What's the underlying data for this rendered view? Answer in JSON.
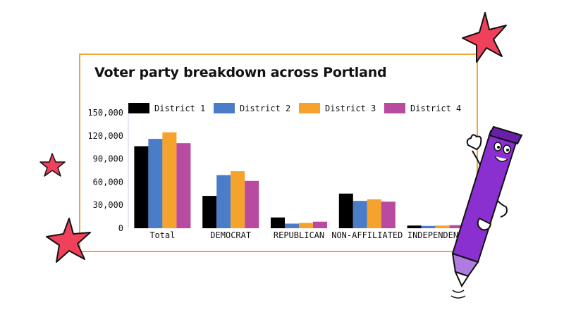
{
  "chart_data": {
    "type": "bar",
    "title": "Voter party breakdown across Portland",
    "xlabel": "",
    "ylabel": "",
    "categories": [
      "Total",
      "DEMOCRAT",
      "REPUBLICAN",
      "NON-AFFILIATED",
      "INDEPENDENT"
    ],
    "series": [
      {
        "name": "District 1",
        "color": "#000000",
        "values": [
          106500,
          42000,
          14000,
          45000,
          3500
        ]
      },
      {
        "name": "District 2",
        "color": "#4a7cc7",
        "values": [
          116000,
          69000,
          6000,
          35500,
          3000
        ]
      },
      {
        "name": "District 3",
        "color": "#f6a32d",
        "values": [
          124500,
          74000,
          7000,
          37500,
          3500
        ]
      },
      {
        "name": "District 4",
        "color": "#b84a9f",
        "values": [
          110500,
          61500,
          8500,
          34500,
          4000
        ]
      }
    ],
    "yticks": [
      "0",
      "30,000",
      "60,000",
      "90,000",
      "120,000",
      "150,000"
    ],
    "ylim": [
      0,
      150000
    ],
    "grid": false,
    "legend_position": "top"
  },
  "decorations": {
    "stars_color": "#f0415a",
    "star_icon": "star-icon",
    "mascot_icon": "pen-mascot-icon",
    "mascot_color": "#8a2fd0"
  }
}
